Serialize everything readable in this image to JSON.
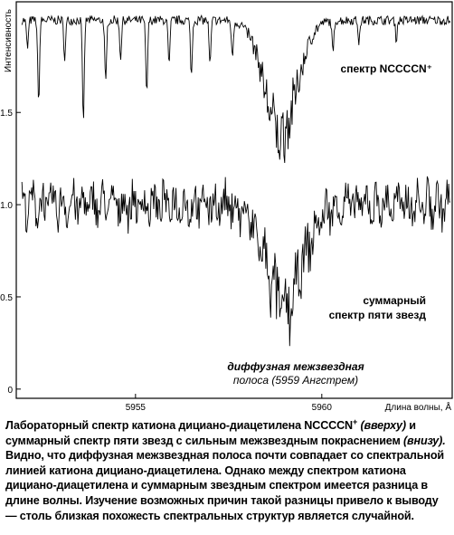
{
  "chart_data": {
    "type": "line",
    "ylabel": "Интенсивность",
    "xlabel": "Длина волны, Å",
    "xlim": [
      5951.8,
      5963.5
    ],
    "ylim": [
      -0.05,
      2.1
    ],
    "x_ticks": [
      5955,
      5960
    ],
    "y_ticks": [
      0,
      0.5,
      1.0,
      1.5
    ],
    "x_tick_labels": [
      "5955",
      "5960"
    ],
    "y_tick_labels": [
      "0",
      "0.5",
      "1.0",
      "1.5"
    ],
    "grid": false,
    "series": [
      {
        "name": "спектр NCCCCN⁺",
        "baseline": 2.0,
        "band": {
          "center": 5958.9,
          "depth": 0.62,
          "width": 0.6
        },
        "narrow_lines": [
          {
            "x": 5952.1,
            "depth": 0.15
          },
          {
            "x": 5952.4,
            "depth": 0.45
          },
          {
            "x": 5953.1,
            "depth": 0.2
          },
          {
            "x": 5953.6,
            "depth": 0.55
          },
          {
            "x": 5954.2,
            "depth": 0.35
          },
          {
            "x": 5954.6,
            "depth": 0.2
          },
          {
            "x": 5955.3,
            "depth": 0.4
          },
          {
            "x": 5955.9,
            "depth": 0.25
          },
          {
            "x": 5956.5,
            "depth": 0.3
          },
          {
            "x": 5957.0,
            "depth": 0.25
          },
          {
            "x": 5957.6,
            "depth": 0.2
          },
          {
            "x": 5960.3,
            "depth": 0.18
          },
          {
            "x": 5961.0,
            "depth": 0.12
          },
          {
            "x": 5962.0,
            "depth": 0.1
          }
        ]
      },
      {
        "name": "суммарный спектр пяти звезд",
        "baseline": 1.0,
        "band": {
          "center": 5959.0,
          "depth": 0.55,
          "width": 0.7
        },
        "noise_amplitude": 0.1
      }
    ],
    "annotations": [
      {
        "id": "top",
        "lines": [
          "спектр NCCCCN⁺"
        ]
      },
      {
        "id": "sum",
        "lines": [
          "суммарный",
          "спектр пяти звезд"
        ]
      },
      {
        "id": "diffuse",
        "lines": [
          "диффузная межзвездная",
          "полоса (5959 Ангстрем)"
        ]
      }
    ]
  },
  "caption": {
    "p1": "Лабораторный спектр катиона дициано-диацетилена NCCCCN",
    "p1_sup": "+",
    "p1_it1": "(вверху)",
    "p1_b": "и суммарный спектр пяти звезд с сильным межзвездным покраснением",
    "p1_it2": "(внизу).",
    "p2": "Видно, что диффузная межзвездная полоса почти совпадает со спектральной линией катиона дициано-диацетилена. Однако между спектром катиона дициано-диацетилена и суммарным звездным спектром имеется разница в длине волны. Изучение возможных причин такой разницы привело к выводу — столь близкая похожесть спектральных структур является случайной."
  }
}
